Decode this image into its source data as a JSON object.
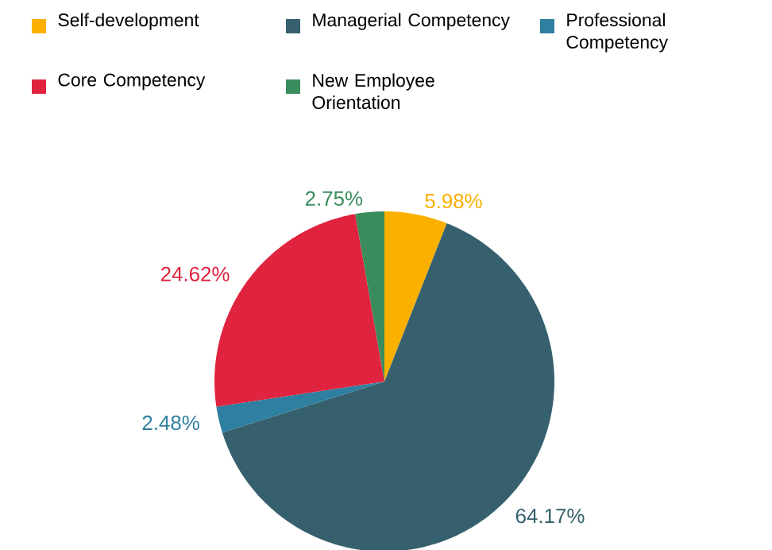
{
  "chart_data": {
    "type": "pie",
    "categories": [
      "Self-development",
      "Managerial Competency",
      "Professional Competency",
      "Core Competency",
      "New Employee Orientation"
    ],
    "values": [
      5.98,
      64.17,
      2.48,
      24.62,
      2.75
    ],
    "colors": [
      "#fbb000",
      "#36606e",
      "#2e7fa0",
      "#e0233e",
      "#3a8c5c"
    ],
    "value_labels": [
      "5.98%",
      "64.17%",
      "2.48%",
      "24.62%",
      "2.75%"
    ],
    "legend": "top"
  }
}
